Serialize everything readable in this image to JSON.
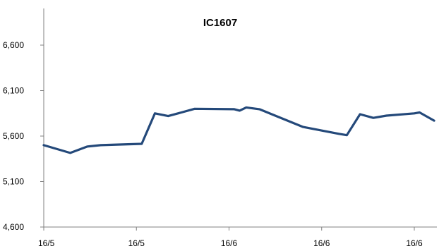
{
  "chart_data": {
    "type": "line",
    "title": "IC1607",
    "xlabel": "",
    "ylabel": "",
    "ylim": [
      4600,
      6600
    ],
    "y_ticks": [
      "4,600",
      "5,100",
      "5,600",
      "6,100",
      "6,600"
    ],
    "y_tick_values": [
      4600,
      5100,
      5600,
      6100,
      6600
    ],
    "x_tick_labels": [
      "16/5",
      "16/5",
      "16/6",
      "16/6",
      "16/6"
    ],
    "x_tick_index": [
      0,
      7,
      14,
      21,
      28
    ],
    "grid": false,
    "legend": "none",
    "series": [
      {
        "color": "#24497a",
        "values": [
          5500,
          5415,
          5485,
          5500,
          5515,
          5850,
          5820,
          5860,
          5900,
          5895,
          5880,
          5915,
          5895,
          5700,
          5625,
          5610,
          5840,
          5800,
          5825,
          5850,
          5860,
          5770
        ],
        "x_index": [
          0,
          2,
          3.3,
          4.3,
          7.4,
          8.4,
          9.4,
          10.4,
          11.4,
          14.4,
          14.8,
          15.3,
          16.3,
          19.6,
          22.3,
          22.9,
          23.9,
          24.9,
          25.9,
          28,
          28.4,
          29.5
        ]
      }
    ]
  }
}
